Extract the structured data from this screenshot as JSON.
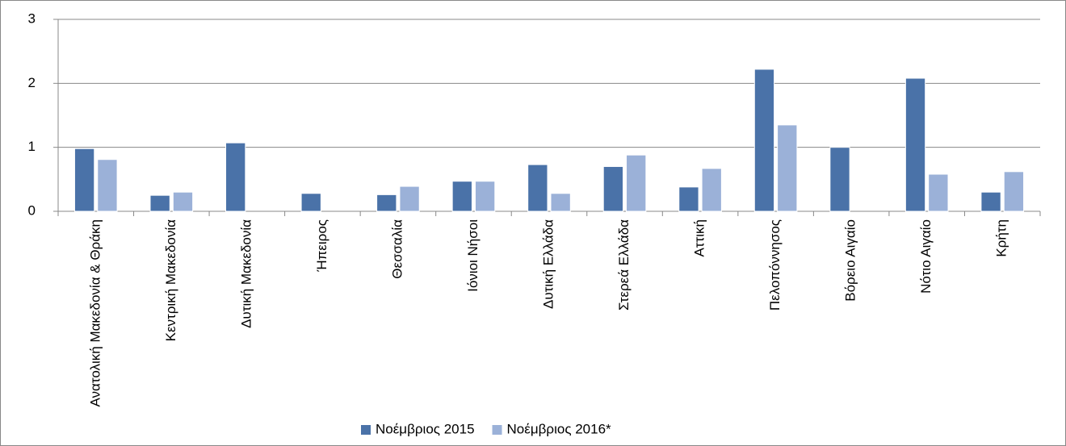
{
  "chart_data": {
    "type": "bar",
    "categories": [
      "Ανατολική Μακεδονία & Θράκη",
      "Κεντρική Μακεδονία",
      "Δυτική Μακεδονία",
      "Ήπειρος",
      "Θεσσαλία",
      "Ιόνιοι Νήσοι",
      "Δυτική Ελλάδα",
      "Στερεά Ελλάδα",
      "Αττική",
      "Πελοπόννησος",
      "Βόρειο Αιγαίο",
      "Νότιο Αιγαίο",
      "Κρήτη"
    ],
    "series": [
      {
        "name": "Νοέμβριος 2015",
        "color": "#4a72a8",
        "values": [
          0.98,
          0.25,
          1.07,
          0.28,
          0.26,
          0.47,
          0.73,
          0.7,
          0.38,
          2.22,
          1.0,
          2.08,
          0.3
        ]
      },
      {
        "name": "Νοέμβριος 2016*",
        "color": "#9bb1d8",
        "values": [
          0.81,
          0.3,
          null,
          null,
          0.39,
          0.47,
          0.28,
          0.88,
          0.67,
          1.35,
          null,
          0.58,
          0.62
        ]
      }
    ],
    "ylim": [
      0,
      3
    ],
    "yticks": [
      0,
      1,
      2,
      3
    ],
    "grid": true,
    "legend": "bottom"
  }
}
